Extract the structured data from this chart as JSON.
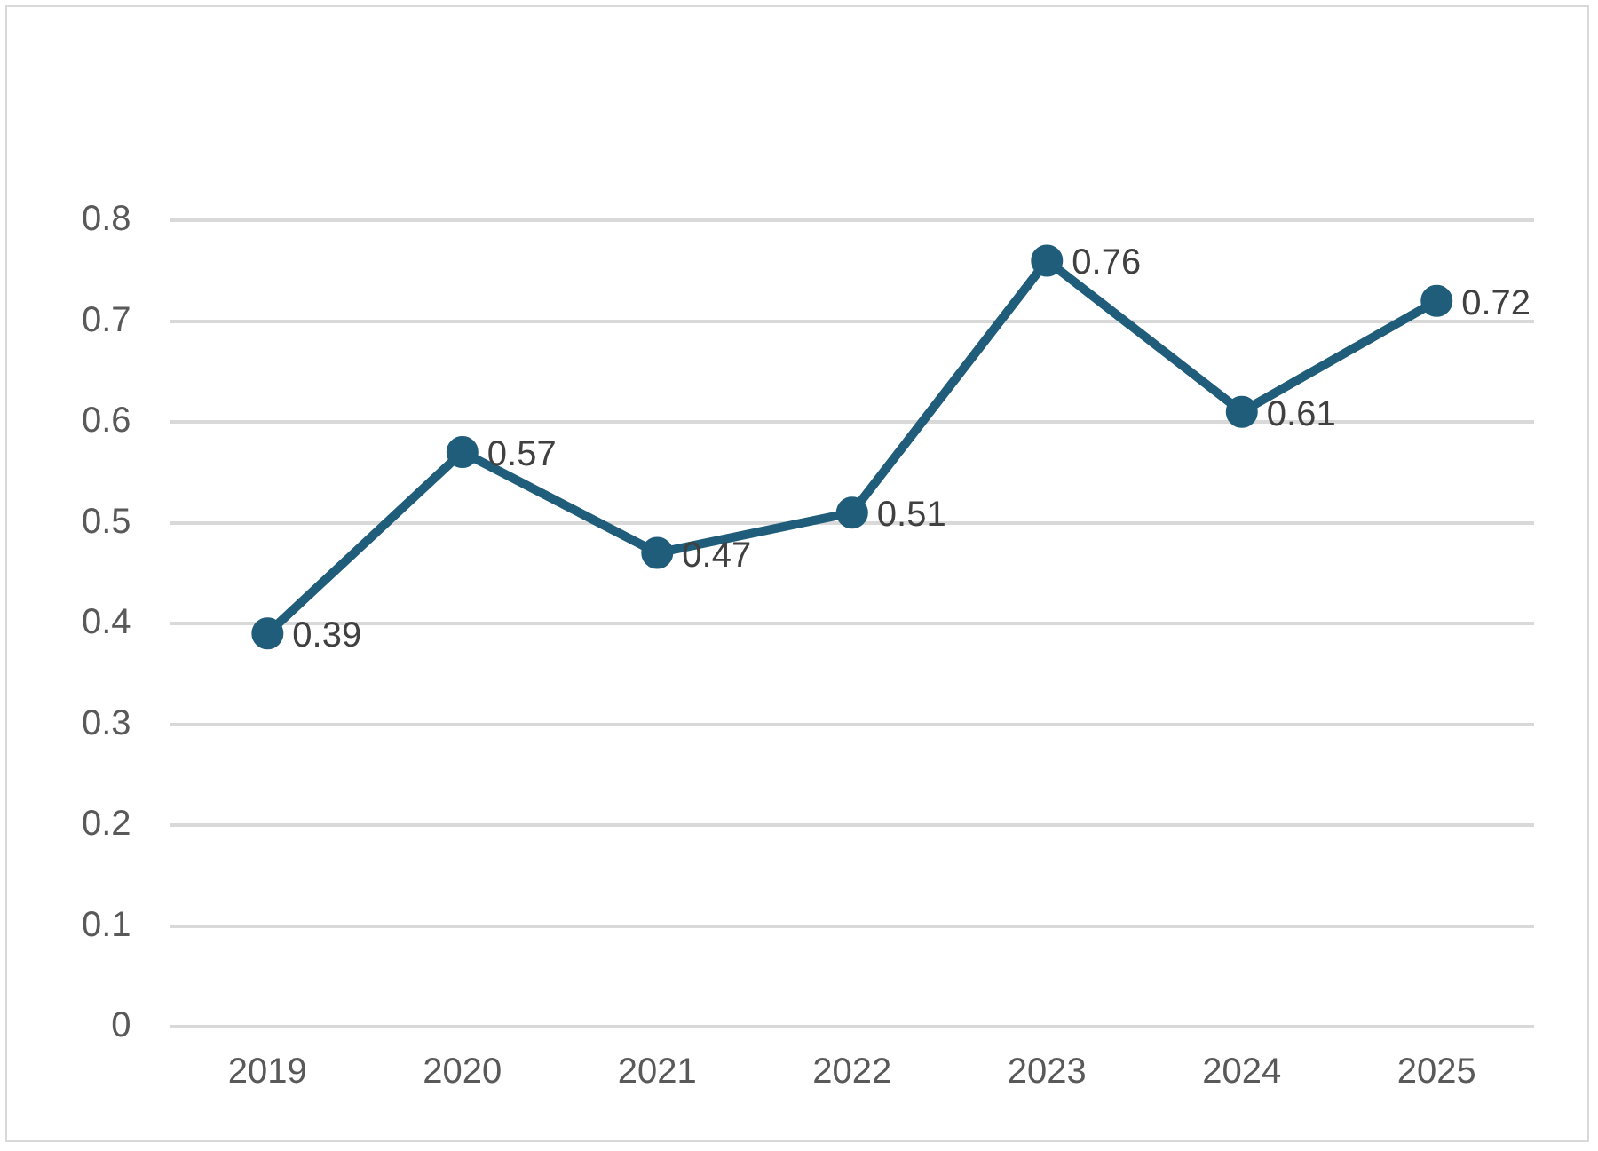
{
  "chart_data": {
    "type": "line",
    "categories": [
      "2019",
      "2020",
      "2021",
      "2022",
      "2023",
      "2024",
      "2025"
    ],
    "series": [
      {
        "color": "#1f5d7a",
        "values": [
          0.39,
          0.57,
          0.47,
          0.51,
          0.76,
          0.61,
          0.72
        ]
      }
    ],
    "ylim": [
      0,
      0.8
    ],
    "yticks": [
      0,
      0.1,
      0.2,
      0.3,
      0.4,
      0.5,
      0.6,
      0.7,
      0.8
    ],
    "grid": "y",
    "legend": false,
    "marker": "circle",
    "data_labels": true
  }
}
